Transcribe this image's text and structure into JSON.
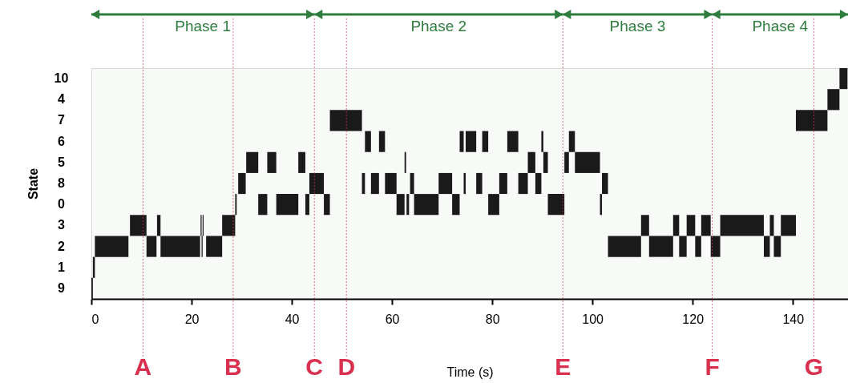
{
  "chart_data": {
    "type": "bar",
    "orientation": "horizontal",
    "xlabel": "Time (s)",
    "ylabel": "State",
    "categories": [
      "10",
      "4",
      "7",
      "6",
      "5",
      "8",
      "0",
      "3",
      "2",
      "1",
      "9"
    ],
    "xlim": [
      0,
      151
    ],
    "xticks": [
      0,
      20,
      40,
      60,
      80,
      100,
      120,
      140
    ],
    "grid": false,
    "legend": false,
    "series": [
      {
        "color": "#1a1a1a",
        "values": [
          1.6,
          2.4,
          6.4,
          1.2,
          2.4,
          1.5,
          0.3,
          3.3,
          6.7,
          0.4,
          0.3
        ],
        "base": [
          149.3,
          146.9,
          47.6,
          54.6,
          30.9,
          29.3,
          28.7,
          7.7,
          0.7,
          0.3,
          0
        ]
      },
      {
        "color": "#1a1a1a",
        "values": [
          null,
          null,
          6.3,
          1.2,
          1.8,
          2.9,
          1.8,
          0.7,
          2.0,
          null,
          null
        ],
        "base": [
          null,
          null,
          140.6,
          57.4,
          35.1,
          43.5,
          33.3,
          13.1,
          11.0,
          null,
          null
        ]
      },
      {
        "color": "#1a1a1a",
        "values": [
          null,
          null,
          null,
          0.8,
          1.4,
          0.6,
          4.4,
          0.2,
          7.9,
          null,
          null
        ],
        "base": [
          null,
          null,
          null,
          73.5,
          41.3,
          54.0,
          36.9,
          21.8,
          13.8,
          null,
          null
        ]
      },
      {
        "color": "#1a1a1a",
        "values": [
          null,
          null,
          null,
          2.1,
          0.3,
          1.6,
          0.8,
          0.2,
          0.2,
          null,
          null
        ],
        "base": [
          null,
          null,
          null,
          74.7,
          62.5,
          55.8,
          42.7,
          22.2,
          22.0,
          null,
          null
        ]
      },
      {
        "color": "#1a1a1a",
        "values": [
          null,
          null,
          null,
          1.2,
          1.5,
          2.3,
          1.2,
          2.6,
          3.2,
          null,
          null
        ],
        "base": [
          null,
          null,
          null,
          78.0,
          87.1,
          58.6,
          46.4,
          26.1,
          22.9,
          null,
          null
        ]
      },
      {
        "color": "#1a1a1a",
        "values": [
          null,
          null,
          null,
          2.2,
          0.9,
          0.8,
          1.6,
          1.6,
          6.6,
          null,
          null
        ],
        "base": [
          null,
          null,
          null,
          83.0,
          90.2,
          63.6,
          60.9,
          109.7,
          103.1,
          null,
          null
        ]
      },
      {
        "color": "#1a1a1a",
        "values": [
          null,
          null,
          null,
          0.4,
          0.9,
          2.7,
          0.5,
          1.2,
          4.8,
          null,
          null
        ],
        "base": [
          null,
          null,
          null,
          89.8,
          94.4,
          69.3,
          62.9,
          116.1,
          111.3,
          null,
          null
        ]
      },
      {
        "color": "#1a1a1a",
        "values": [
          null,
          null,
          null,
          1.2,
          5.0,
          0.4,
          4.9,
          1.7,
          1.5,
          null,
          null
        ],
        "base": [
          null,
          null,
          null,
          95.3,
          96.5,
          74.3,
          64.4,
          118.8,
          117.3,
          null,
          null
        ]
      },
      {
        "color": "#1a1a1a",
        "values": [
          null,
          null,
          null,
          null,
          null,
          1.2,
          1.5,
          1.9,
          1.2,
          null,
          null
        ],
        "base": [
          null,
          null,
          null,
          null,
          null,
          76.8,
          72.0,
          121.7,
          120.5,
          null,
          null
        ]
      },
      {
        "color": "#1a1a1a",
        "values": [
          null,
          null,
          null,
          null,
          null,
          1.6,
          2.2,
          8.7,
          1.9,
          null,
          null
        ],
        "base": [
          null,
          null,
          null,
          null,
          null,
          81.4,
          79.2,
          125.5,
          123.6,
          null,
          null
        ]
      },
      {
        "color": "#1a1a1a",
        "values": [
          null,
          null,
          null,
          null,
          null,
          1.9,
          3.3,
          0.8,
          1.2,
          null,
          null
        ],
        "base": [
          null,
          null,
          null,
          null,
          null,
          85.2,
          91.1,
          135.4,
          134.2,
          null,
          null
        ]
      },
      {
        "color": "#1a1a1a",
        "values": [
          null,
          null,
          null,
          null,
          null,
          1.2,
          0.4,
          3.0,
          1.4,
          null,
          null
        ],
        "base": [
          null,
          null,
          null,
          null,
          null,
          88.6,
          101.5,
          137.6,
          136.2,
          null,
          null
        ]
      },
      {
        "color": "#1a1a1a",
        "values": [
          null,
          null,
          null,
          null,
          null,
          1.2,
          null,
          null,
          null,
          null,
          null
        ],
        "base": [
          null,
          null,
          null,
          null,
          null,
          101.9,
          null,
          null,
          null,
          null,
          null
        ]
      }
    ],
    "ref_lines": [
      {
        "axis": "x",
        "value": 10.3,
        "label": "A",
        "color": "#d9304f",
        "line_style": "dotted"
      },
      {
        "axis": "x",
        "value": 28.3,
        "label": "B",
        "color": "#d9304f",
        "line_style": "dotted"
      },
      {
        "axis": "x",
        "value": 44.5,
        "label": "C",
        "color": "#d9304f",
        "line_style": "dotted"
      },
      {
        "axis": "x",
        "value": 50.9,
        "label": "D",
        "color": "#d9304f",
        "line_style": "dotted"
      },
      {
        "axis": "x",
        "value": 94.1,
        "label": "E",
        "color": "#d9304f",
        "line_style": "dotted"
      },
      {
        "axis": "x",
        "value": 123.9,
        "label": "F",
        "color": "#d9304f",
        "line_style": "dotted"
      },
      {
        "axis": "x",
        "value": 144.2,
        "label": "G",
        "color": "#d9304f",
        "line_style": "dotted"
      }
    ],
    "bands": [
      {
        "axis": "x",
        "from": 0,
        "to": 44.5,
        "label": "Phase 1",
        "color": "#2e7d3e"
      },
      {
        "axis": "x",
        "from": 44.5,
        "to": 94.1,
        "label": "Phase 2",
        "color": "#2e7d3e"
      },
      {
        "axis": "x",
        "from": 94.1,
        "to": 123.9,
        "label": "Phase 3",
        "color": "#2e7d3e"
      },
      {
        "axis": "x",
        "from": 123.9,
        "to": 151,
        "label": "Phase 4",
        "color": "#2e7d3e"
      }
    ]
  }
}
